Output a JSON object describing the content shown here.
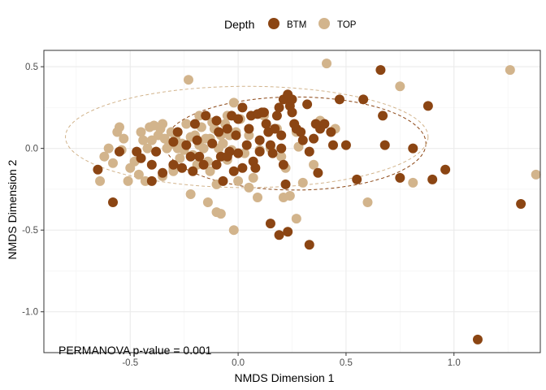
{
  "chart_data": {
    "type": "scatter",
    "title": "",
    "xlabel": "NMDS Dimension 1",
    "ylabel": "NMDS Dimension 2",
    "xlim": [
      -0.9,
      1.4
    ],
    "ylim": [
      -1.25,
      0.6
    ],
    "xticks": [
      -0.5,
      0.0,
      0.5,
      1.0
    ],
    "yticks": [
      -1.0,
      -0.5,
      0.0,
      0.5
    ],
    "xtick_labels": [
      "-0.5",
      "0.0",
      "0.5",
      "1.0"
    ],
    "ytick_labels": [
      "-1.0",
      "-0.5",
      "0.0",
      "0.5"
    ],
    "grid": true,
    "legend": {
      "title": "Depth",
      "placement": "top",
      "entries": [
        {
          "label": "BTM",
          "color": "#8B4513"
        },
        {
          "label": "TOP",
          "color": "#D2B48C"
        }
      ]
    },
    "annotation": "PERMANOVA p-value = 0.001",
    "ellipses": [
      {
        "series": "BTM",
        "center": [
          0.265,
          0.03
        ],
        "rx": 0.605,
        "ry": 0.285,
        "style": "dashed"
      },
      {
        "series": "TOP",
        "center": [
          0.04,
          0.07
        ],
        "rx": 0.84,
        "ry": 0.31,
        "style": "dashed"
      }
    ],
    "series": [
      {
        "name": "BTM",
        "color": "#8B4513",
        "points": [
          [
            -0.65,
            -0.13
          ],
          [
            -0.58,
            -0.33
          ],
          [
            -0.55,
            -0.02
          ],
          [
            -0.47,
            -0.02
          ],
          [
            -0.45,
            -0.06
          ],
          [
            -0.4,
            -0.2
          ],
          [
            -0.38,
            -0.02
          ],
          [
            -0.35,
            -0.15
          ],
          [
            -0.3,
            -0.1
          ],
          [
            -0.28,
            0.1
          ],
          [
            -0.26,
            -0.12
          ],
          [
            -0.24,
            0.02
          ],
          [
            -0.22,
            -0.05
          ],
          [
            -0.21,
            -0.14
          ],
          [
            -0.19,
            0.05
          ],
          [
            -0.18,
            -0.05
          ],
          [
            -0.16,
            -0.1
          ],
          [
            -0.15,
            0.2
          ],
          [
            -0.12,
            0.03
          ],
          [
            -0.1,
            -0.1
          ],
          [
            -0.09,
            0.1
          ],
          [
            -0.08,
            -0.05
          ],
          [
            -0.07,
            -0.2
          ],
          [
            -0.05,
            0.12
          ],
          [
            -0.04,
            -0.02
          ],
          [
            -0.03,
            0.2
          ],
          [
            -0.02,
            -0.14
          ],
          [
            -0.01,
            0.08
          ],
          [
            0.0,
            -0.03
          ],
          [
            0.02,
            0.25
          ],
          [
            0.02,
            -0.12
          ],
          [
            0.04,
            0.02
          ],
          [
            0.05,
            0.12
          ],
          [
            0.06,
            0.2
          ],
          [
            0.07,
            -0.08
          ],
          [
            0.08,
            -0.12
          ],
          [
            0.09,
            0.21
          ],
          [
            0.1,
            0.05
          ],
          [
            0.11,
            0.22
          ],
          [
            0.12,
            0.22
          ],
          [
            0.13,
            0.15
          ],
          [
            0.14,
            0.1
          ],
          [
            0.15,
            0.02
          ],
          [
            0.16,
            -0.03
          ],
          [
            0.17,
            0.12
          ],
          [
            0.18,
            0.2
          ],
          [
            0.19,
            0.25
          ],
          [
            0.2,
            0.08
          ],
          [
            0.21,
            0.3
          ],
          [
            0.21,
            -0.1
          ],
          [
            0.22,
            -0.22
          ],
          [
            0.23,
            0.33
          ],
          [
            0.24,
            0.26
          ],
          [
            0.25,
            0.22
          ],
          [
            0.26,
            0.15
          ],
          [
            0.27,
            0.12
          ],
          [
            0.29,
            0.1
          ],
          [
            0.3,
            0.05
          ],
          [
            0.32,
            0.27
          ],
          [
            0.33,
            -0.02
          ],
          [
            0.35,
            0.06
          ],
          [
            0.36,
            0.15
          ],
          [
            0.37,
            -0.15
          ],
          [
            0.38,
            0.12
          ],
          [
            0.4,
            0.15
          ],
          [
            0.43,
            0.1
          ],
          [
            0.44,
            0.02
          ],
          [
            0.47,
            0.3
          ],
          [
            0.5,
            0.02
          ],
          [
            0.55,
            -0.19
          ],
          [
            0.58,
            0.3
          ],
          [
            0.66,
            0.48
          ],
          [
            0.67,
            0.2
          ],
          [
            0.68,
            0.02
          ],
          [
            0.75,
            -0.18
          ],
          [
            0.81,
            0.0
          ],
          [
            0.88,
            0.26
          ],
          [
            0.9,
            -0.19
          ],
          [
            0.96,
            -0.13
          ],
          [
            0.15,
            -0.46
          ],
          [
            0.19,
            -0.53
          ],
          [
            0.23,
            -0.51
          ],
          [
            0.33,
            -0.59
          ],
          [
            1.11,
            -1.17
          ],
          [
            1.31,
            -0.34
          ],
          [
            -0.4,
            -0.1
          ],
          [
            -0.2,
            0.15
          ],
          [
            -0.1,
            0.17
          ],
          [
            0.0,
            0.18
          ],
          [
            0.1,
            -0.02
          ],
          [
            0.2,
            0.0
          ],
          [
            -0.05,
            -0.05
          ],
          [
            0.25,
            0.3
          ],
          [
            -0.3,
            0.04
          ]
        ]
      },
      {
        "name": "TOP",
        "color": "#D2B48C",
        "points": [
          [
            -0.64,
            -0.2
          ],
          [
            -0.62,
            -0.05
          ],
          [
            -0.6,
            0.0
          ],
          [
            -0.58,
            -0.09
          ],
          [
            -0.56,
            0.1
          ],
          [
            -0.55,
            0.13
          ],
          [
            -0.54,
            -0.01
          ],
          [
            -0.53,
            0.06
          ],
          [
            -0.51,
            -0.2
          ],
          [
            -0.5,
            -0.12
          ],
          [
            -0.48,
            -0.08
          ],
          [
            -0.46,
            -0.16
          ],
          [
            -0.45,
            0.1
          ],
          [
            -0.44,
            0.05
          ],
          [
            -0.43,
            -0.2
          ],
          [
            -0.42,
            0.0
          ],
          [
            -0.41,
            0.13
          ],
          [
            -0.4,
            0.05
          ],
          [
            -0.39,
            0.14
          ],
          [
            -0.38,
            -0.02
          ],
          [
            -0.37,
            0.08
          ],
          [
            -0.36,
            0.12
          ],
          [
            -0.35,
            -0.17
          ],
          [
            -0.34,
            0.06
          ],
          [
            -0.33,
            0.0
          ],
          [
            -0.32,
            0.02
          ],
          [
            -0.31,
            0.1
          ],
          [
            -0.3,
            -0.14
          ],
          [
            -0.29,
            0.06
          ],
          [
            -0.28,
            0.0
          ],
          [
            -0.27,
            -0.06
          ],
          [
            -0.26,
            0.03
          ],
          [
            -0.25,
            -0.01
          ],
          [
            -0.24,
            0.15
          ],
          [
            -0.23,
            0.42
          ],
          [
            -0.22,
            0.07
          ],
          [
            -0.21,
            -0.04
          ],
          [
            -0.2,
            0.08
          ],
          [
            -0.19,
            -0.1
          ],
          [
            -0.18,
            0.02
          ],
          [
            -0.17,
            0.13
          ],
          [
            -0.16,
            0.0
          ],
          [
            -0.15,
            0.06
          ],
          [
            -0.14,
            -0.08
          ],
          [
            -0.13,
            0.06
          ],
          [
            -0.12,
            0.16
          ],
          [
            -0.11,
            0.12
          ],
          [
            -0.1,
            -0.22
          ],
          [
            -0.09,
            0.0
          ],
          [
            -0.08,
            0.08
          ],
          [
            -0.07,
            0.03
          ],
          [
            -0.06,
            0.15
          ],
          [
            -0.05,
            -0.07
          ],
          [
            -0.04,
            0.08
          ],
          [
            -0.03,
            -0.01
          ],
          [
            -0.02,
            0.28
          ],
          [
            -0.01,
            0.1
          ],
          [
            0.01,
            0.18
          ],
          [
            0.03,
            -0.03
          ],
          [
            0.05,
            0.08
          ],
          [
            0.07,
            -0.18
          ],
          [
            0.09,
            -0.3
          ],
          [
            0.1,
            -0.01
          ],
          [
            0.12,
            0.2
          ],
          [
            0.15,
            0.0
          ],
          [
            0.18,
            0.12
          ],
          [
            0.2,
            -0.05
          ],
          [
            0.22,
            -0.12
          ],
          [
            0.24,
            -0.29
          ],
          [
            0.27,
            0.1
          ],
          [
            0.28,
            0.01
          ],
          [
            0.3,
            -0.21
          ],
          [
            0.35,
            -0.1
          ],
          [
            0.38,
            0.17
          ],
          [
            0.41,
            0.52
          ],
          [
            0.45,
            0.12
          ],
          [
            0.6,
            -0.33
          ],
          [
            0.75,
            0.38
          ],
          [
            0.81,
            -0.21
          ],
          [
            1.26,
            0.48
          ],
          [
            1.38,
            -0.16
          ],
          [
            -0.02,
            -0.5
          ],
          [
            0.27,
            -0.43
          ],
          [
            -0.14,
            -0.33
          ],
          [
            -0.1,
            -0.39
          ],
          [
            -0.08,
            -0.4
          ],
          [
            -0.22,
            -0.28
          ],
          [
            -0.3,
            -0.12
          ],
          [
            -0.18,
            0.2
          ],
          [
            -0.05,
            0.2
          ],
          [
            0.0,
            -0.2
          ],
          [
            -0.13,
            -0.14
          ],
          [
            0.05,
            -0.24
          ],
          [
            0.21,
            -0.3
          ],
          [
            -0.35,
            0.15
          ]
        ]
      }
    ]
  }
}
